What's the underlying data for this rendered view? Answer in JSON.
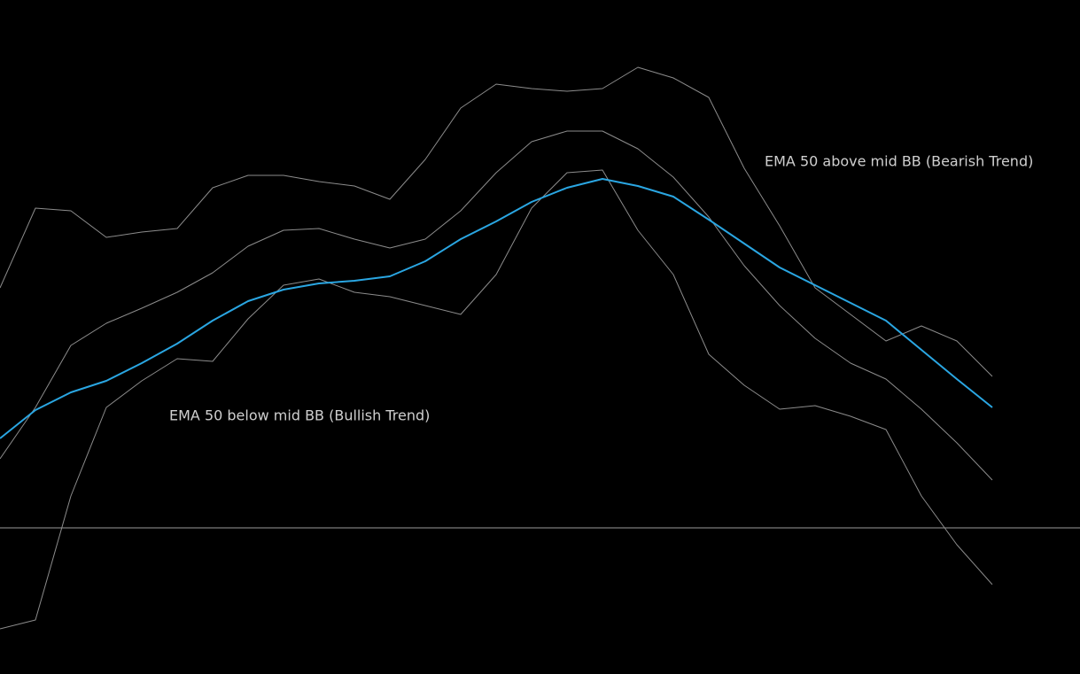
{
  "chart_data": {
    "type": "line",
    "annotations": [
      "EMA 50 above mid BB (Bearish Trend)",
      "EMA 50 below mid BB (Bullish Trend)"
    ],
    "x": [
      0,
      40,
      80,
      120,
      160,
      200,
      240,
      280,
      320,
      360,
      400,
      440,
      480,
      520,
      560,
      600,
      640,
      680,
      720,
      760,
      800,
      840,
      880,
      920,
      960,
      1000,
      1040,
      1080,
      1120
    ],
    "xlim": [
      0,
      1219
    ],
    "ylim": [
      -165,
      596
    ],
    "hline": 0,
    "hline_color": "#9a9a9a",
    "series": [
      {
        "color": "#8c8c8c",
        "width": 1,
        "values": [
          271,
          361,
          358,
          328,
          334,
          338,
          384,
          398,
          398,
          391,
          386,
          371,
          416,
          474,
          501,
          496,
          493,
          496,
          520,
          508,
          486,
          406,
          341,
          271,
          241,
          211,
          228,
          211,
          171
        ]
      },
      {
        "color": "#8c8c8c",
        "width": 1,
        "values": [
          78,
          136,
          206,
          231,
          248,
          266,
          288,
          318,
          336,
          338,
          326,
          316,
          326,
          358,
          401,
          436,
          448,
          448,
          428,
          396,
          351,
          296,
          251,
          214,
          186,
          168,
          134,
          96,
          54
        ]
      },
      {
        "color": "#8c8c8c",
        "width": 1,
        "values": [
          -114,
          -104,
          36,
          136,
          166,
          191,
          188,
          236,
          274,
          281,
          266,
          261,
          251,
          241,
          286,
          361,
          401,
          404,
          336,
          286,
          196,
          161,
          134,
          138,
          126,
          111,
          36,
          -19,
          -64
        ]
      },
      {
        "color": "#2aa6e2",
        "width": 2,
        "values": [
          101,
          133,
          153,
          166,
          186,
          208,
          234,
          256,
          269,
          276,
          279,
          284,
          301,
          326,
          346,
          368,
          384,
          394,
          386,
          374,
          348,
          321,
          294,
          274,
          254,
          234,
          201,
          168,
          136
        ]
      }
    ]
  }
}
